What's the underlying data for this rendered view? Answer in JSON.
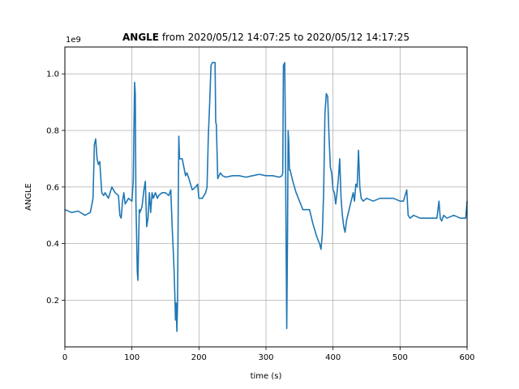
{
  "chart_data": {
    "type": "line",
    "title_bold": "ANGLE",
    "title_rest": " from 2020/05/12 14:07:25 to 2020/05/12 14:17:25",
    "xlabel": "time (s)",
    "ylabel": "ANGLE",
    "y_offset_text": "1e9",
    "xlim": [
      0,
      600
    ],
    "ylim": [
      0.035,
      1.095
    ],
    "x_ticks": [
      0,
      100,
      200,
      300,
      400,
      500,
      600
    ],
    "y_ticks": [
      0.2,
      0.4,
      0.6,
      0.8,
      1.0
    ],
    "x_tick_labels": [
      "0",
      "100",
      "200",
      "300",
      "400",
      "500",
      "600"
    ],
    "y_tick_labels": [
      "0.2",
      "0.4",
      "0.6",
      "0.8",
      "1.0"
    ],
    "grid": true,
    "colors": {
      "line": "#1f77b4",
      "grid": "#b0b0b0"
    },
    "series": [
      {
        "x": [
          0,
          10,
          20,
          30,
          38,
          42,
          44,
          46,
          48,
          50,
          52,
          55,
          58,
          60,
          65,
          70,
          75,
          80,
          82,
          84,
          86,
          88,
          90,
          95,
          100,
          102,
          104,
          105,
          106,
          107,
          108,
          109,
          110,
          111,
          112,
          115,
          118,
          120,
          122,
          124,
          126,
          128,
          130,
          132,
          135,
          138,
          140,
          145,
          150,
          155,
          158,
          160,
          162,
          163,
          164,
          165,
          166,
          167,
          168,
          169,
          170,
          171,
          172,
          175,
          180,
          182,
          185,
          190,
          195,
          198,
          200,
          205,
          210,
          212,
          214,
          216,
          218,
          220,
          222,
          224,
          225,
          226,
          228,
          230,
          232,
          235,
          240,
          250,
          260,
          270,
          280,
          290,
          300,
          310,
          320,
          324,
          325,
          326,
          328,
          329,
          330,
          331,
          332,
          333,
          334,
          335,
          336,
          338,
          340,
          345,
          350,
          355,
          360,
          365,
          370,
          375,
          378,
          380,
          382,
          384,
          386,
          388,
          390,
          392,
          394,
          396,
          398,
          400,
          402,
          404,
          406,
          408,
          410,
          412,
          414,
          416,
          418,
          420,
          425,
          430,
          432,
          434,
          436,
          438,
          440,
          442,
          445,
          450,
          460,
          470,
          480,
          490,
          500,
          505,
          510,
          512,
          515,
          520,
          530,
          540,
          550,
          555,
          558,
          560,
          562,
          565,
          570,
          580,
          590,
          598,
          600
        ],
        "y": [
          0.52,
          0.51,
          0.515,
          0.5,
          0.51,
          0.56,
          0.75,
          0.77,
          0.7,
          0.68,
          0.69,
          0.58,
          0.57,
          0.58,
          0.56,
          0.6,
          0.58,
          0.57,
          0.5,
          0.49,
          0.55,
          0.58,
          0.54,
          0.56,
          0.55,
          0.62,
          0.97,
          0.93,
          0.55,
          0.42,
          0.3,
          0.27,
          0.4,
          0.52,
          0.51,
          0.53,
          0.59,
          0.62,
          0.46,
          0.49,
          0.58,
          0.51,
          0.58,
          0.56,
          0.58,
          0.56,
          0.57,
          0.58,
          0.58,
          0.57,
          0.59,
          0.46,
          0.36,
          0.3,
          0.22,
          0.13,
          0.19,
          0.09,
          0.18,
          0.5,
          0.78,
          0.7,
          0.7,
          0.7,
          0.64,
          0.65,
          0.63,
          0.59,
          0.6,
          0.61,
          0.56,
          0.56,
          0.58,
          0.6,
          0.78,
          0.9,
          1.03,
          1.04,
          1.04,
          1.04,
          0.83,
          0.82,
          0.63,
          0.64,
          0.65,
          0.64,
          0.635,
          0.64,
          0.64,
          0.635,
          0.64,
          0.645,
          0.64,
          0.64,
          0.635,
          0.64,
          0.65,
          1.03,
          1.04,
          0.78,
          0.4,
          0.1,
          0.41,
          0.8,
          0.76,
          0.66,
          0.66,
          0.64,
          0.62,
          0.58,
          0.55,
          0.52,
          0.52,
          0.52,
          0.47,
          0.43,
          0.41,
          0.4,
          0.38,
          0.43,
          0.58,
          0.86,
          0.93,
          0.92,
          0.78,
          0.67,
          0.65,
          0.59,
          0.58,
          0.54,
          0.58,
          0.63,
          0.7,
          0.56,
          0.5,
          0.46,
          0.44,
          0.48,
          0.53,
          0.58,
          0.55,
          0.61,
          0.6,
          0.73,
          0.6,
          0.56,
          0.55,
          0.56,
          0.55,
          0.56,
          0.56,
          0.56,
          0.55,
          0.55,
          0.59,
          0.5,
          0.49,
          0.5,
          0.49,
          0.49,
          0.49,
          0.49,
          0.55,
          0.49,
          0.48,
          0.5,
          0.49,
          0.5,
          0.49,
          0.49,
          0.55
        ]
      }
    ]
  }
}
